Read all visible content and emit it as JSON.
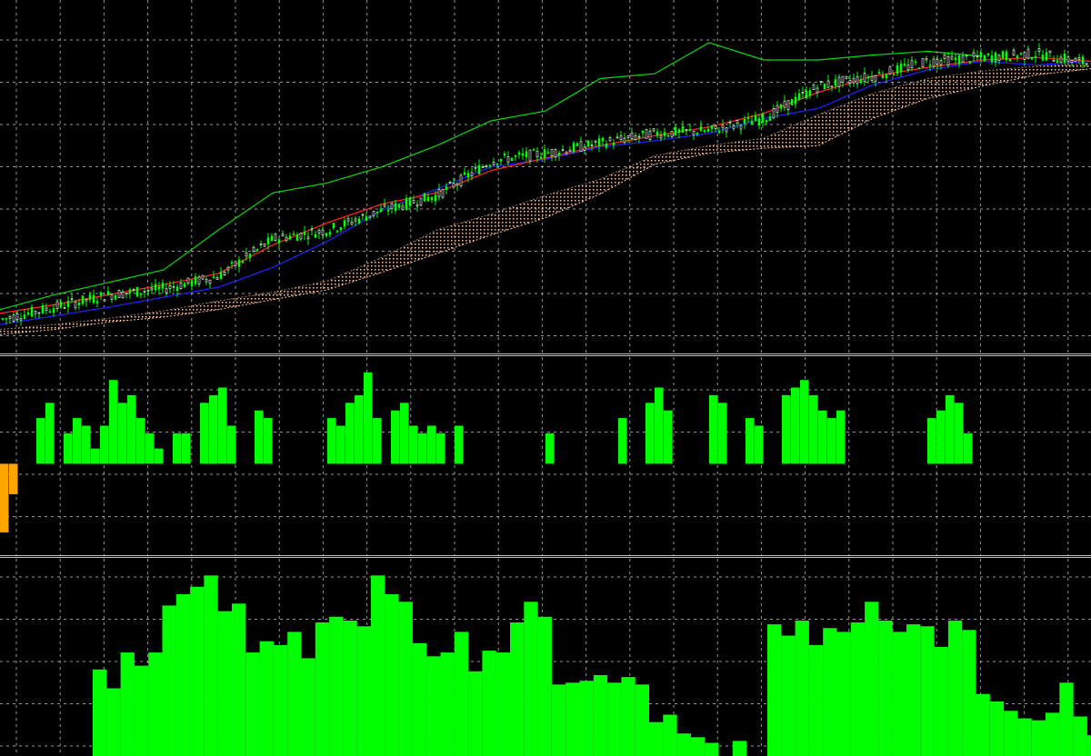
{
  "colors": {
    "background": "#000000",
    "grid": "#c8c8c8",
    "candle_up": "#00ff00",
    "candle_down": "#ffffff",
    "tenkan": "#ff2020",
    "kijun": "#2020ff",
    "chikou": "#00dd00",
    "cloud": "#ffc8a0",
    "osc_positive": "#00ff00",
    "osc_negative": "#ffa500",
    "volume": "#00ff00"
  },
  "chart_data": [
    {
      "type": "candlestick",
      "indicators": [
        "tenkan",
        "kijun",
        "senkou_span_a",
        "senkou_span_b",
        "chikou"
      ],
      "grid": true,
      "x": [
        0,
        10,
        20,
        30,
        40,
        50,
        60,
        70,
        80,
        90,
        100,
        110,
        120,
        130,
        140,
        150,
        160,
        170,
        180,
        190,
        200
      ],
      "close": [
        10,
        11,
        12,
        12.5,
        13.5,
        16.5,
        17.2,
        18.8,
        20,
        22.8,
        23.4,
        24.2,
        25,
        25.2,
        26.2,
        28.8,
        29.6,
        30.8,
        31.1,
        31.4,
        30.6
      ],
      "tenkan": [
        10.5,
        11.2,
        12,
        12.8,
        13.7,
        16,
        17.8,
        19.3,
        20.2,
        22,
        23,
        24,
        24.8,
        25.5,
        26.6,
        28.3,
        29.6,
        30.3,
        30.9,
        31.1,
        30.8
      ],
      "kijun": [
        9.6,
        10.3,
        11,
        11.8,
        12.6,
        14.2,
        16.3,
        18.8,
        20.5,
        22.3,
        22.9,
        23.9,
        24.4,
        25,
        26.2,
        27,
        28.9,
        30.1,
        30.8,
        30.5,
        30.8
      ],
      "senkou_a": [
        9.2,
        9.6,
        10.1,
        10.7,
        11.5,
        12.2,
        13.1,
        15,
        17.2,
        18.5,
        20,
        21.3,
        23.2,
        24,
        24.6,
        26.5,
        28.2,
        29.4,
        30,
        30.4,
        30.6
      ],
      "senkou_b": [
        8.8,
        9.2,
        9.8,
        10.2,
        10.8,
        11.6,
        12.4,
        13.8,
        15.3,
        16.8,
        18.2,
        20.1,
        22.5,
        23.4,
        23.8,
        24,
        26.2,
        27.8,
        28.8,
        29.7,
        30.2
      ],
      "chikou": [
        10.8,
        12,
        13,
        14,
        17.2,
        20.2,
        21,
        22.3,
        24,
        26,
        26.8,
        29.4,
        29.8,
        32.3,
        30.9,
        30.9,
        31.3,
        31.6,
        31.2,
        null,
        null
      ],
      "ylim": [
        8,
        35
      ]
    },
    {
      "type": "bar",
      "grid": true,
      "values": [
        -9,
        -4,
        0,
        0,
        6,
        8,
        0,
        4,
        6,
        5,
        2,
        5,
        11,
        8,
        9,
        6,
        4,
        2,
        0,
        4,
        4,
        0,
        8,
        9,
        10,
        5,
        0,
        0,
        7,
        6,
        0,
        0,
        0,
        0,
        0,
        0,
        6,
        5,
        8,
        9,
        12,
        6,
        0,
        7,
        8,
        5,
        4,
        5,
        4,
        0,
        5,
        0,
        0,
        0,
        0,
        0,
        0,
        0,
        0,
        0,
        4,
        0,
        0,
        0,
        0,
        0,
        0,
        0,
        6,
        0,
        0,
        8,
        10,
        7,
        0,
        0,
        0,
        0,
        9,
        8,
        0,
        0,
        6,
        5,
        0,
        0,
        9,
        10,
        11,
        9,
        7,
        6,
        7,
        0,
        0,
        0,
        0,
        0,
        0,
        0,
        0,
        0,
        6,
        7,
        9,
        8,
        4,
        0,
        0,
        0,
        0,
        0,
        0,
        0,
        0,
        0,
        0,
        0,
        0,
        0
      ],
      "ylim": [
        -12,
        14
      ]
    },
    {
      "type": "bar",
      "grid": true,
      "values": [
        0,
        0,
        0,
        0,
        0,
        0,
        0,
        0,
        0,
        0,
        0,
        0,
        0,
        0,
        0,
        0,
        0,
        0,
        0,
        0,
        0,
        0,
        0,
        0,
        0,
        0,
        0,
        0,
        0,
        0,
        0,
        0,
        0,
        0,
        0,
        0,
        0,
        0,
        0,
        0,
        0,
        0,
        0,
        0,
        0,
        0,
        0,
        0,
        0,
        0,
        0,
        0,
        0,
        0,
        0,
        0,
        0,
        0,
        0,
        0,
        0,
        0,
        0,
        0,
        0,
        0,
        0,
        0,
        0,
        0,
        0,
        0,
        0,
        0,
        0,
        0,
        0,
        0,
        0,
        0,
        0,
        0,
        0,
        0,
        0,
        0,
        0,
        0,
        0,
        0,
        0,
        0,
        0,
        0,
        0,
        0,
        0,
        0,
        0,
        0
      ],
      "bars": [
        46,
        36,
        55,
        48,
        55,
        80,
        86,
        90,
        96,
        77,
        81,
        55,
        61,
        59,
        66,
        52,
        71,
        74,
        72,
        69,
        96,
        86,
        82,
        60,
        53,
        55,
        66,
        45,
        56,
        55,
        71,
        82,
        74,
        38,
        39,
        40,
        43,
        39,
        42,
        38,
        18,
        22,
        12,
        10,
        7,
        0,
        8,
        0
      ],
      "bars2": [
        70,
        64,
        72,
        59,
        68,
        66,
        71,
        82,
        72,
        66,
        70,
        69,
        58,
        72,
        67,
        33,
        29,
        24,
        20,
        19,
        23,
        39,
        21,
        11,
        23,
        22,
        14
      ],
      "ylim": [
        0,
        100
      ]
    }
  ]
}
